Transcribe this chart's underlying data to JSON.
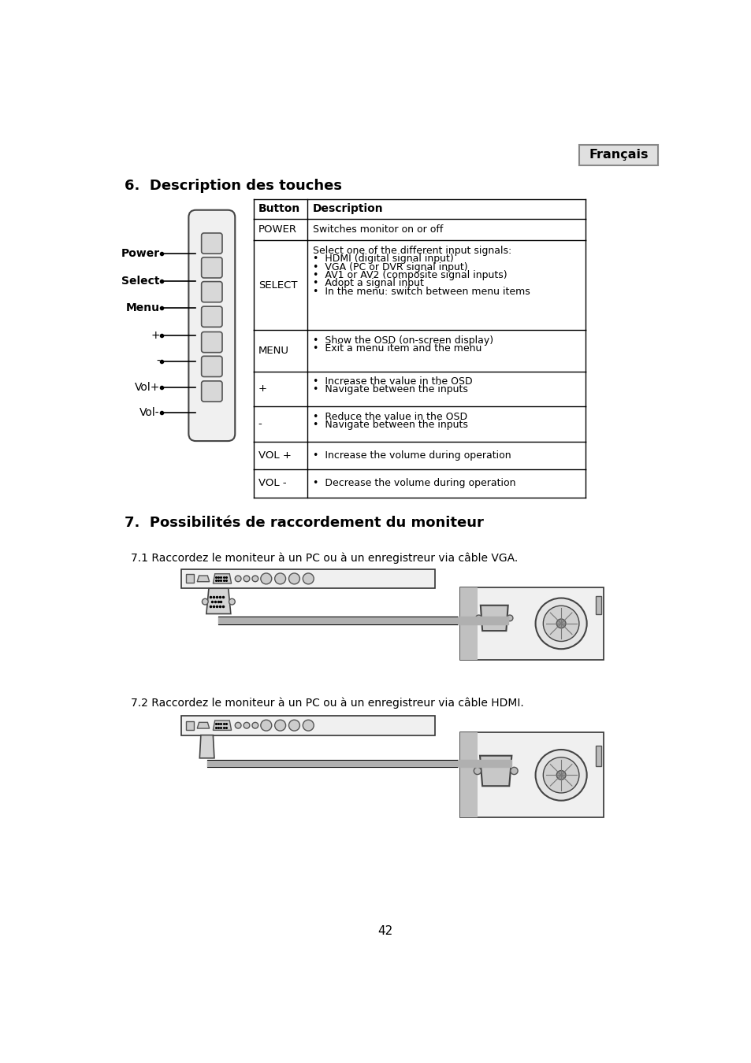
{
  "page_bg": "#ffffff",
  "page_number": "42",
  "lang_label": "Français",
  "section6_title": "6.  Description des touches",
  "section7_title": "7.  Possibilités de raccordement du moniteur",
  "text_71": "7.1 Raccordez le moniteur à un PC ou à un enregistreur via câble VGA.",
  "text_72": "7.2 Raccordez le moniteur à un PC ou à un enregistreur via câble HDMI.",
  "table_header": [
    "Button",
    "Description"
  ],
  "table_rows": [
    [
      "POWER",
      "Switches monitor on or off"
    ],
    [
      "SELECT",
      "Select one of the different input signals:\n•  HDMI (digital signal input)\n•  VGA (PC or DVR signal input)\n•  AV1 or AV2 (composite signal inputs)\n•  Adopt a signal input\n•  In the menu: switch between menu items"
    ],
    [
      "MENU",
      "•  Show the OSD (on-screen display)\n•  Exit a menu item and the menu"
    ],
    [
      "+",
      "•  Increase the value in the OSD\n•  Navigate between the inputs"
    ],
    [
      "-",
      "•  Reduce the value in the OSD\n•  Navigate between the inputs"
    ],
    [
      "VOL +",
      "•  Increase the volume during operation"
    ],
    [
      "VOL -",
      "•  Decrease the volume during operation"
    ]
  ],
  "side_labels": [
    [
      "Power",
      195
    ],
    [
      "Select",
      240
    ],
    [
      "Menu",
      285
    ],
    [
      "+",
      330
    ],
    [
      "-",
      373
    ],
    [
      "Vol+",
      415
    ],
    [
      "Vol-",
      457
    ]
  ],
  "font_color": "#000000"
}
